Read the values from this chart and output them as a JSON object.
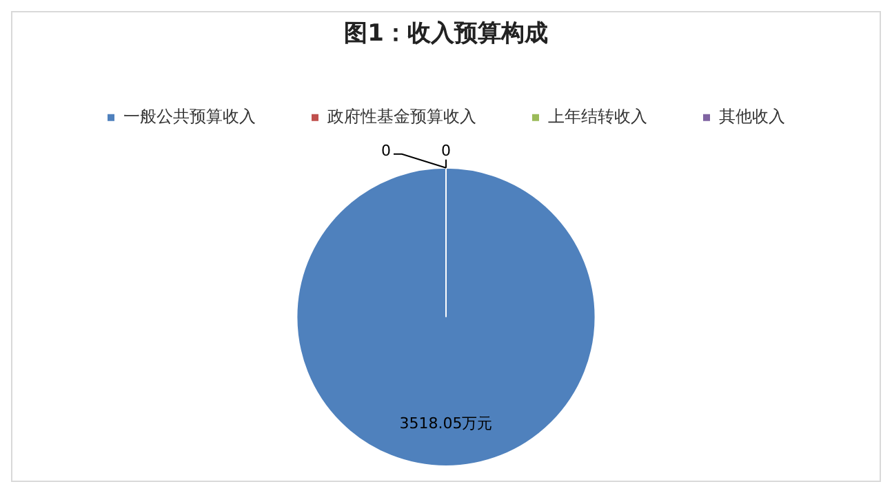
{
  "chart_data": {
    "type": "pie",
    "title": "图1：收入预算构成",
    "categories": [
      "一般公共预算收入",
      "政府性基金预算收入",
      "上年结转收入",
      "其他收入"
    ],
    "values": [
      3518.05,
      0,
      0,
      0
    ],
    "colors": [
      "#4f81bd",
      "#c0504d",
      "#9bbb59",
      "#8064a2"
    ],
    "value_labels": [
      "3518.05万元",
      "0",
      "0",
      null
    ],
    "legend": "top"
  }
}
